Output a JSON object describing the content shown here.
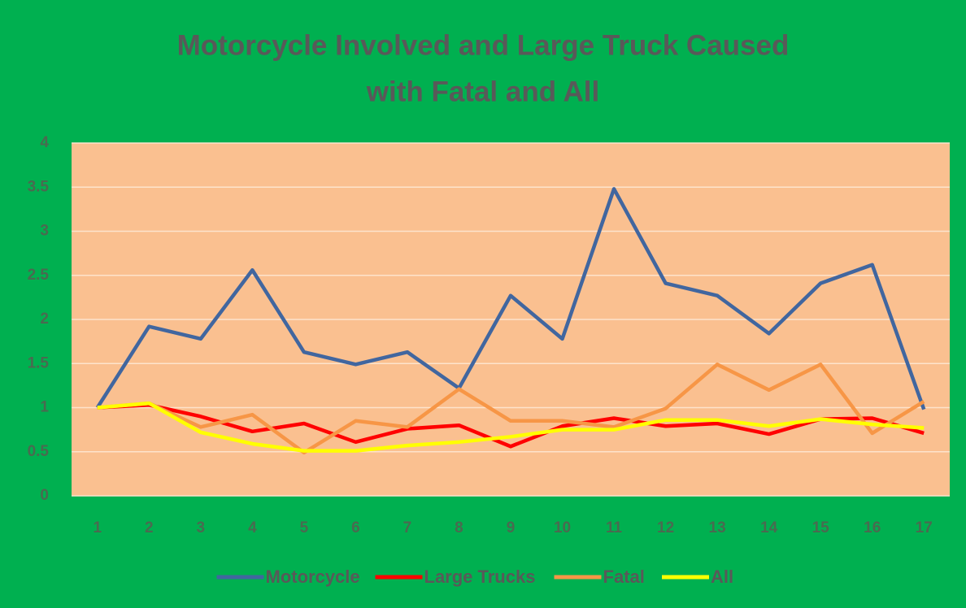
{
  "chart_data": {
    "type": "line",
    "title": [
      "Motorcycle Involved and Large Truck Caused",
      "with Fatal and All"
    ],
    "categories": [
      1,
      2,
      3,
      4,
      5,
      6,
      7,
      8,
      9,
      10,
      11,
      12,
      13,
      14,
      15,
      16,
      17
    ],
    "series": [
      {
        "name": "Motorcycle",
        "color": "#41669f",
        "values": [
          1,
          1.92,
          1.78,
          2.56,
          1.63,
          1.49,
          1.63,
          1.22,
          2.27,
          1.78,
          3.48,
          2.41,
          2.27,
          1.84,
          2.41,
          2.62,
          0.98
        ]
      },
      {
        "name": "Large Trucks",
        "color": "#ff0000",
        "values": [
          1,
          1.03,
          0.9,
          0.73,
          0.82,
          0.61,
          0.76,
          0.8,
          0.56,
          0.79,
          0.88,
          0.79,
          0.82,
          0.7,
          0.87,
          0.88,
          0.71
        ]
      },
      {
        "name": "Fatal",
        "color": "#f79646",
        "values": [
          1,
          1.05,
          0.78,
          0.92,
          0.49,
          0.85,
          0.78,
          1.21,
          0.85,
          0.85,
          0.78,
          0.99,
          1.49,
          1.2,
          1.49,
          0.71,
          1.07
        ]
      },
      {
        "name": "All",
        "color": "#ffff00",
        "values": [
          1,
          1.05,
          0.72,
          0.59,
          0.51,
          0.51,
          0.57,
          0.61,
          0.67,
          0.75,
          0.75,
          0.86,
          0.86,
          0.79,
          0.87,
          0.81,
          0.77
        ]
      }
    ],
    "ylim": [
      0,
      4
    ],
    "yticks": [
      0,
      0.5,
      1,
      1.5,
      2,
      2.5,
      3,
      3.5,
      4
    ],
    "grid": true,
    "legend": "bottom"
  }
}
